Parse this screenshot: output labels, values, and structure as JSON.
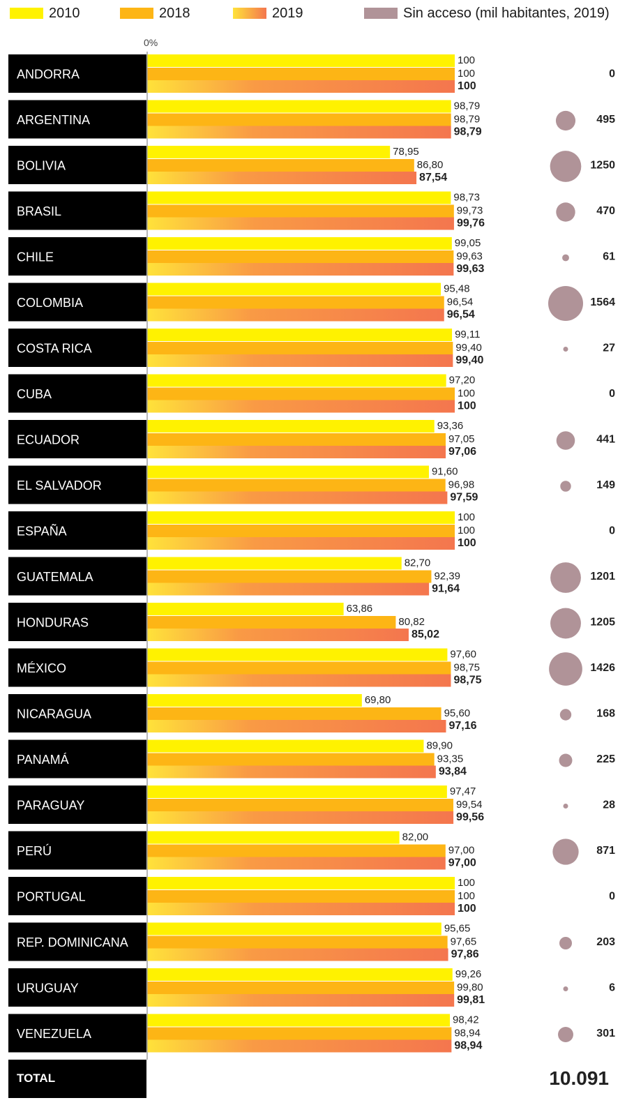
{
  "legend": {
    "items": [
      {
        "label": "2010",
        "color": "#FFF200"
      },
      {
        "label": "2018",
        "color": "#FDB515"
      },
      {
        "label": "2019",
        "color": "#F4764E",
        "gradient_from": "#FFE23A"
      },
      {
        "label": "Sin acceso (mil habitantes, 2019)",
        "color": "#B09398"
      }
    ]
  },
  "axis": {
    "zero_label": "0%"
  },
  "total": {
    "label": "TOTAL",
    "value": "10.091"
  },
  "chart_data": {
    "type": "bar",
    "orientation": "horizontal",
    "xlim": [
      0,
      100
    ],
    "categories": [
      "ANDORRA",
      "ARGENTINA",
      "BOLIVIA",
      "BRASIL",
      "CHILE",
      "COLOMBIA",
      "COSTA RICA",
      "CUBA",
      "ECUADOR",
      "EL SALVADOR",
      "ESPAÑA",
      "GUATEMALA",
      "HONDURAS",
      "MÉXICO",
      "NICARAGUA",
      "PANAMÁ",
      "PARAGUAY",
      "PERÚ",
      "PORTUGAL",
      "REP. DOMINICANA",
      "URUGUAY",
      "VENEZUELA"
    ],
    "series": [
      {
        "name": "2010",
        "values": [
          100,
          98.79,
          78.95,
          98.73,
          99.05,
          95.48,
          99.11,
          97.2,
          93.36,
          91.6,
          100,
          82.7,
          63.86,
          97.6,
          69.8,
          89.9,
          97.47,
          82.0,
          100,
          95.65,
          99.26,
          98.42
        ],
        "labels": [
          "100",
          "98,79",
          "78,95",
          "98,73",
          "99,05",
          "95,48",
          "99,11",
          "97,20",
          "93,36",
          "91,60",
          "100",
          "82,70",
          "63,86",
          "97,60",
          "69,80",
          "89,90",
          "97,47",
          "82,00",
          "100",
          "95,65",
          "99,26",
          "98,42"
        ]
      },
      {
        "name": "2018",
        "values": [
          100,
          98.79,
          86.8,
          99.73,
          99.63,
          96.54,
          99.4,
          100,
          97.05,
          96.98,
          100,
          92.39,
          80.82,
          98.75,
          95.6,
          93.35,
          99.54,
          97.0,
          100,
          97.65,
          99.8,
          98.94
        ],
        "labels": [
          "100",
          "98,79",
          "86,80",
          "99,73",
          "99,63",
          "96,54",
          "99,40",
          "100",
          "97,05",
          "96,98",
          "100",
          "92,39",
          "80,82",
          "98,75",
          "95,60",
          "93,35",
          "99,54",
          "97,00",
          "100",
          "97,65",
          "99,80",
          "98,94"
        ]
      },
      {
        "name": "2019",
        "values": [
          100,
          98.79,
          87.54,
          99.76,
          99.63,
          96.54,
          99.4,
          100,
          97.06,
          97.59,
          100,
          91.64,
          85.02,
          98.75,
          97.16,
          93.84,
          99.56,
          97.0,
          100,
          97.86,
          99.81,
          98.94
        ],
        "labels": [
          "100",
          "98,79",
          "87,54",
          "99,76",
          "99,63",
          "96,54",
          "99,40",
          "100",
          "97,06",
          "97,59",
          "100",
          "91,64",
          "85,02",
          "98,75",
          "97,16",
          "93,84",
          "99,56",
          "97,00",
          "100",
          "97,86",
          "99,81",
          "98,94"
        ]
      }
    ],
    "sin_acceso": {
      "name": "Sin acceso (mil habitantes, 2019)",
      "values": [
        0,
        495,
        1250,
        470,
        61,
        1564,
        27,
        0,
        441,
        149,
        0,
        1201,
        1205,
        1426,
        168,
        225,
        28,
        871,
        0,
        203,
        6,
        301
      ],
      "labels": [
        "0",
        "495",
        "1250",
        "470",
        "61",
        "1564",
        "27",
        "0",
        "441",
        "149",
        "0",
        "1201",
        "1205",
        "1426",
        "168",
        "225",
        "28",
        "871",
        "0",
        "203",
        "6",
        "301"
      ]
    }
  }
}
